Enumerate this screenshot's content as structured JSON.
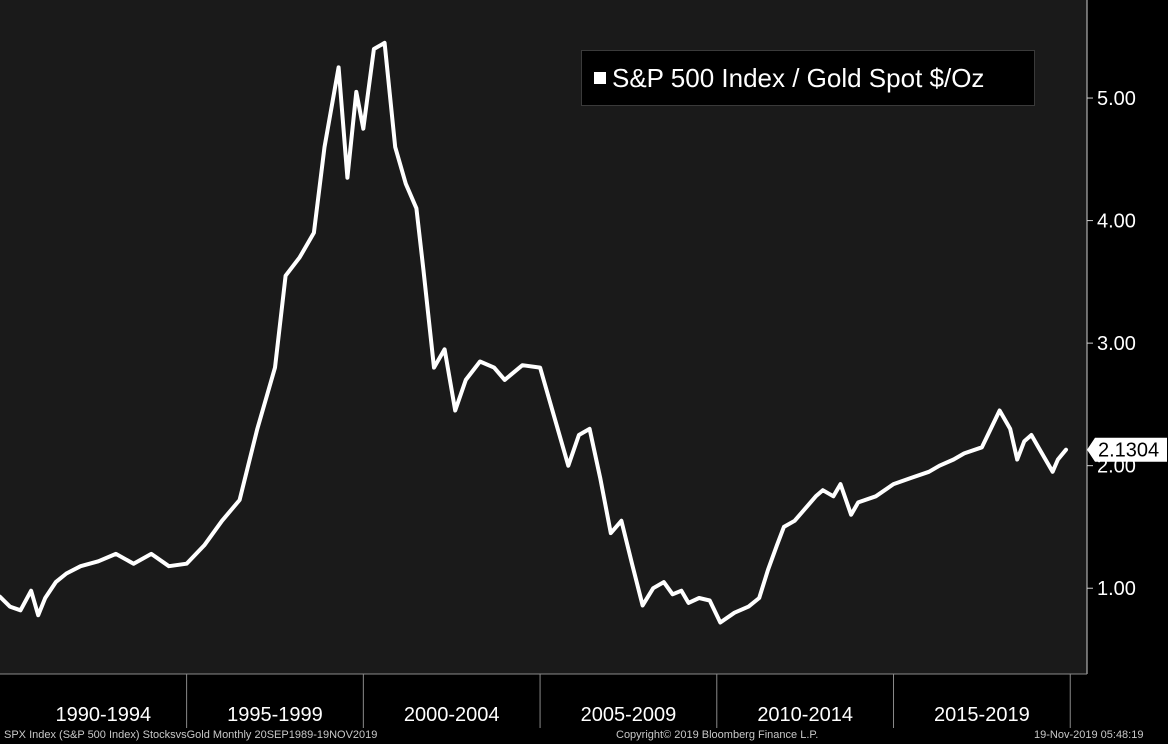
{
  "chart_data": {
    "type": "line",
    "title": "",
    "series": [
      {
        "name": "S&P 500 Index / Gold Spot $/Oz",
        "color": "#ffffff",
        "x": [
          1989.72,
          1990.0,
          1990.3,
          1990.6,
          1990.8,
          1991.0,
          1991.3,
          1991.6,
          1992.0,
          1992.5,
          1993.0,
          1993.5,
          1994.0,
          1994.5,
          1995.0,
          1995.5,
          1996.0,
          1996.5,
          1997.0,
          1997.5,
          1997.8,
          1998.2,
          1998.6,
          1998.9,
          1999.3,
          1999.55,
          1999.8,
          2000.0,
          2000.3,
          2000.6,
          2000.9,
          2001.2,
          2001.5,
          2001.7,
          2002.0,
          2002.3,
          2002.6,
          2002.9,
          2003.3,
          2003.7,
          2004.0,
          2004.5,
          2005.0,
          2005.4,
          2005.8,
          2006.1,
          2006.4,
          2006.7,
          2007.0,
          2007.3,
          2007.6,
          2007.9,
          2008.2,
          2008.5,
          2008.75,
          2009.0,
          2009.2,
          2009.5,
          2009.8,
          2010.1,
          2010.5,
          2010.9,
          2011.2,
          2011.45,
          2011.7,
          2011.9,
          2012.2,
          2012.5,
          2012.8,
          2013.0,
          2013.3,
          2013.5,
          2013.8,
          2014.0,
          2014.5,
          2015.0,
          2015.5,
          2016.0,
          2016.3,
          2016.7,
          2017.0,
          2017.5,
          2018.0,
          2018.3,
          2018.5,
          2018.7,
          2018.9,
          2019.1,
          2019.3,
          2019.5,
          2019.65,
          2019.88
        ],
        "values": [
          0.93,
          0.85,
          0.82,
          0.98,
          0.78,
          0.92,
          1.05,
          1.12,
          1.18,
          1.22,
          1.28,
          1.2,
          1.28,
          1.18,
          1.2,
          1.35,
          1.55,
          1.72,
          2.3,
          2.8,
          3.55,
          3.7,
          3.9,
          4.6,
          5.25,
          4.35,
          5.05,
          4.75,
          5.4,
          5.45,
          4.6,
          4.3,
          4.1,
          3.6,
          2.8,
          2.95,
          2.45,
          2.7,
          2.85,
          2.8,
          2.7,
          2.82,
          2.8,
          2.4,
          2.0,
          2.25,
          2.3,
          1.9,
          1.45,
          1.55,
          1.2,
          0.86,
          1.0,
          1.05,
          0.95,
          0.98,
          0.88,
          0.92,
          0.9,
          0.72,
          0.8,
          0.85,
          0.92,
          1.15,
          1.35,
          1.5,
          1.55,
          1.65,
          1.75,
          1.8,
          1.75,
          1.85,
          1.6,
          1.7,
          1.75,
          1.85,
          1.9,
          1.95,
          2.0,
          2.05,
          2.1,
          2.15,
          2.45,
          2.3,
          2.05,
          2.2,
          2.25,
          2.15,
          2.05,
          1.95,
          2.05,
          2.13
        ]
      }
    ],
    "xlim": [
      1989.72,
      2019.88
    ],
    "ylim": [
      0.3,
      5.8
    ],
    "yticks": [
      1.0,
      2.0,
      3.0,
      4.0,
      5.0
    ],
    "ytick_labels": [
      "1.00",
      "2.00",
      "3.00",
      "4.00",
      "5.00"
    ],
    "xtick_labels": [
      "1990-1994",
      "1995-1999",
      "2000-2004",
      "2005-2009",
      "2010-2014",
      "2015-2019"
    ],
    "xperiod_boundaries": [
      1995.0,
      2000.0,
      2005.0,
      2010.0,
      2015.0,
      2020.0
    ],
    "last_value_label": "2.1304",
    "last_value": 2.1304,
    "legend_label": "S&P 500 Index / Gold Spot $/Oz",
    "legend_position": "top-right",
    "grid": false,
    "xlabel": "",
    "ylabel": ""
  },
  "footer": {
    "left": "SPX Index (S&P 500 Index) StocksvsGold  Monthly 20SEP1989-19NOV2019",
    "center": "Copyright© 2019 Bloomberg Finance L.P.",
    "right": "19-Nov-2019 05:48:19"
  },
  "colors": {
    "background": "#000000",
    "plot_background": "#1a1a1a",
    "line": "#ffffff",
    "text": "#ffffff"
  }
}
